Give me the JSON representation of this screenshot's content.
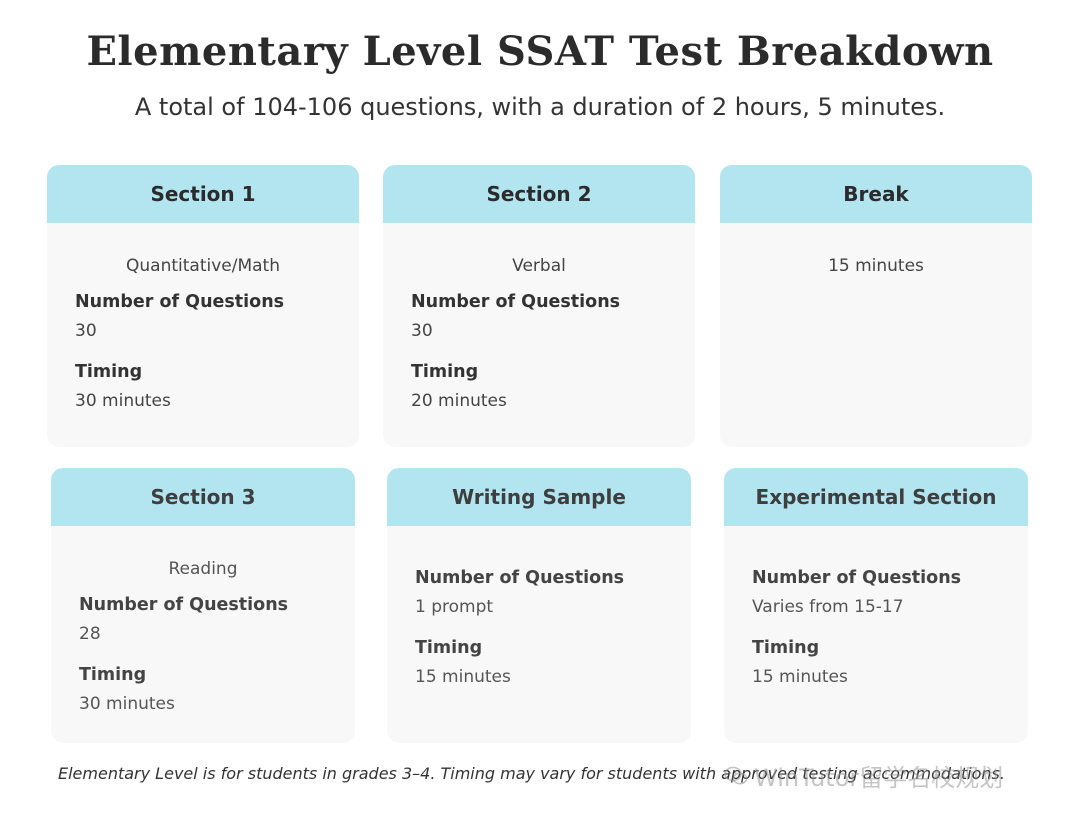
{
  "header": {
    "title": "Elementary Level SSAT Test Breakdown",
    "subtitle": "A total of 104-106 questions, with a duration of 2 hours, 5 minutes."
  },
  "cards": [
    {
      "title": "Section 1",
      "subject": "Quantitative/Math",
      "questions_label": "Number of Questions",
      "questions": "30",
      "timing_label": "Timing",
      "timing": "30 minutes"
    },
    {
      "title": "Section 2",
      "subject": "Verbal",
      "questions_label": "Number of Questions",
      "questions": "30",
      "timing_label": "Timing",
      "timing": "20 minutes"
    },
    {
      "title": "Break",
      "subject": "15 minutes"
    },
    {
      "title": "Section 3",
      "subject": "Reading",
      "questions_label": "Number of Questions",
      "questions": "28",
      "timing_label": "Timing",
      "timing": "30 minutes"
    },
    {
      "title": "Writing Sample",
      "questions_label": "Number of Questions",
      "questions": "1 prompt",
      "timing_label": "Timing",
      "timing": "15 minutes"
    },
    {
      "title": "Experimental Section",
      "questions_label": "Number of Questions",
      "questions": "Varies from 15-17",
      "timing_label": "Timing",
      "timing": "15 minutes"
    }
  ],
  "footnote": "Elementary Level is for students in grades 3–4. Timing may vary for students with approved testing accommodations.",
  "watermark": {
    "text": "WinTutor留学名校规划",
    "icon": "wechat-icon"
  }
}
